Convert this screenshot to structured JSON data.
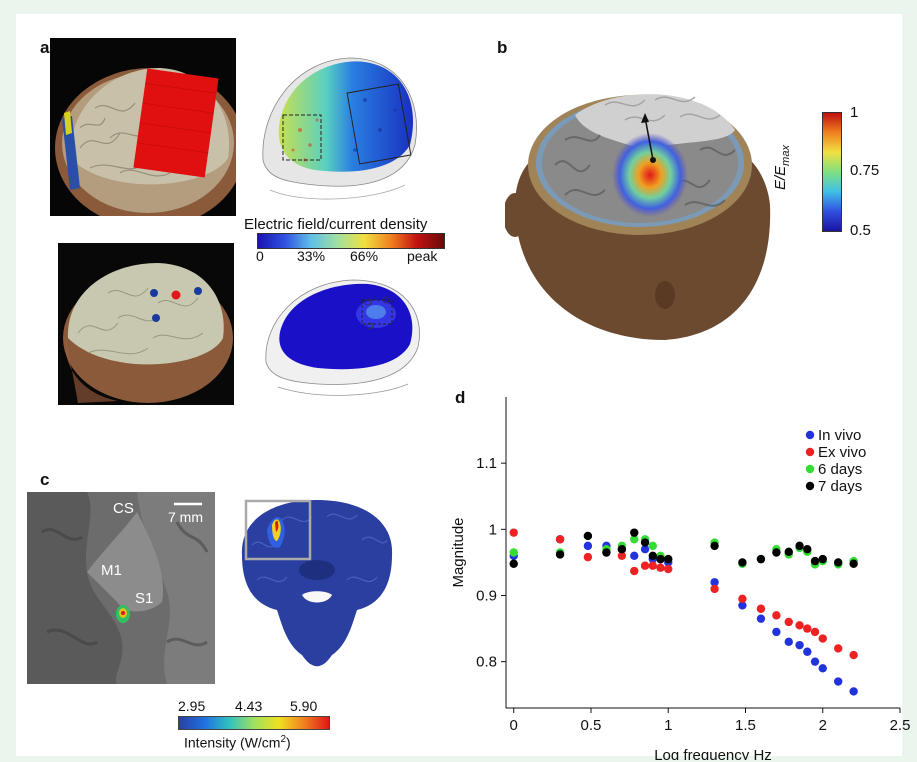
{
  "panel_labels": {
    "a": "a",
    "b": "b",
    "c": "c",
    "d": "d"
  },
  "panel_a": {
    "colorbar_title": "Electric field/current density",
    "colorbar_ticks": [
      "0",
      "33%",
      "66%",
      "peak"
    ]
  },
  "panel_b": {
    "colorbar_label": "E/E",
    "colorbar_label_sub": "max",
    "colorbar_ticks": [
      "1",
      "0.75",
      "0.5"
    ]
  },
  "panel_c": {
    "labels": {
      "cs": "CS",
      "m1": "M1",
      "s1": "S1",
      "scale": "7 mm"
    },
    "colorbar_ticks": [
      "2.95",
      "4.43",
      "5.90"
    ],
    "colorbar_title": "Intensity (W/cm",
    "colorbar_title_sup": "2",
    "colorbar_title_end": ")"
  },
  "chart_data": {
    "type": "scatter",
    "xlabel": "Log frequency Hz",
    "ylabel": "Magnitude",
    "xlim": [
      -0.05,
      2.5
    ],
    "ylim": [
      0.73,
      1.2
    ],
    "xticks": [
      "0",
      "0.5",
      "1",
      "1.5",
      "2",
      "2.5"
    ],
    "yticks": [
      "0.8",
      "0.9",
      "1",
      "1.1"
    ],
    "legend_position": "top-right",
    "series": [
      {
        "name": "In vivo",
        "color": "#2233dd",
        "x": [
          0,
          0.3,
          0.48,
          0.6,
          0.7,
          0.78,
          0.85,
          0.9,
          0.95,
          1.0,
          1.3,
          1.48,
          1.6,
          1.7,
          1.78,
          1.85,
          1.9,
          1.95,
          2.0,
          2.1,
          2.2
        ],
        "y": [
          0.96,
          0.985,
          0.975,
          0.975,
          0.97,
          0.96,
          0.97,
          0.955,
          0.955,
          0.95,
          0.92,
          0.885,
          0.865,
          0.845,
          0.83,
          0.825,
          0.815,
          0.8,
          0.79,
          0.77,
          0.755
        ]
      },
      {
        "name": "Ex vivo",
        "color": "#ee2222",
        "x": [
          0,
          0.3,
          0.48,
          0.6,
          0.7,
          0.78,
          0.85,
          0.9,
          0.95,
          1.0,
          1.3,
          1.48,
          1.6,
          1.7,
          1.78,
          1.85,
          1.9,
          1.95,
          2.0,
          2.1,
          2.2
        ],
        "y": [
          0.995,
          0.985,
          0.958,
          0.965,
          0.96,
          0.937,
          0.945,
          0.945,
          0.942,
          0.94,
          0.91,
          0.895,
          0.88,
          0.87,
          0.86,
          0.855,
          0.85,
          0.845,
          0.835,
          0.82,
          0.81
        ]
      },
      {
        "name": "6 days",
        "color": "#33dd33",
        "x": [
          0,
          0.3,
          0.48,
          0.6,
          0.7,
          0.78,
          0.85,
          0.9,
          0.95,
          1.0,
          1.3,
          1.48,
          1.6,
          1.7,
          1.78,
          1.85,
          1.9,
          1.95,
          2.0,
          2.1,
          2.2
        ],
        "y": [
          0.965,
          0.965,
          0.99,
          0.97,
          0.975,
          0.985,
          0.985,
          0.975,
          0.96,
          0.955,
          0.98,
          0.948,
          0.955,
          0.97,
          0.962,
          0.972,
          0.966,
          0.947,
          0.952,
          0.947,
          0.952
        ]
      },
      {
        "name": "7 days",
        "color": "#000000",
        "x": [
          0,
          0.3,
          0.48,
          0.6,
          0.7,
          0.78,
          0.85,
          0.9,
          0.95,
          1.0,
          1.3,
          1.48,
          1.6,
          1.7,
          1.78,
          1.85,
          1.9,
          1.95,
          2.0,
          2.1,
          2.2
        ],
        "y": [
          0.948,
          0.962,
          0.99,
          0.965,
          0.97,
          0.995,
          0.98,
          0.96,
          0.955,
          0.955,
          0.975,
          0.95,
          0.955,
          0.965,
          0.966,
          0.975,
          0.97,
          0.952,
          0.955,
          0.95,
          0.948
        ]
      }
    ]
  }
}
